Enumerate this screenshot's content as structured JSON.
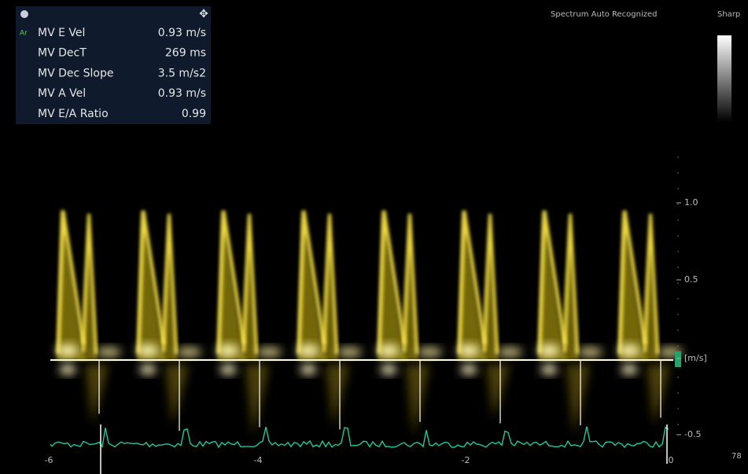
{
  "panel": {
    "marker": "Ar",
    "rows": [
      [
        "MV E Vel",
        "0.93 m/s"
      ],
      [
        "MV DecT",
        "269 ms"
      ],
      [
        "MV Dec Slope",
        "3.5 m/s2"
      ],
      [
        "MV A Vel",
        "0.93 m/s"
      ],
      [
        "MV E/A Ratio",
        "0.99"
      ]
    ]
  },
  "header": {
    "status": "Spectrum Auto Recognized",
    "map": "Sharp"
  },
  "velocity_scale": {
    "labels": [
      "1.0",
      "0.5",
      "[m/s]",
      "-0.5"
    ]
  },
  "time_scale": {
    "labels": [
      "-6",
      "-4",
      "-2",
      "0"
    ]
  },
  "heart_rate": "78"
}
